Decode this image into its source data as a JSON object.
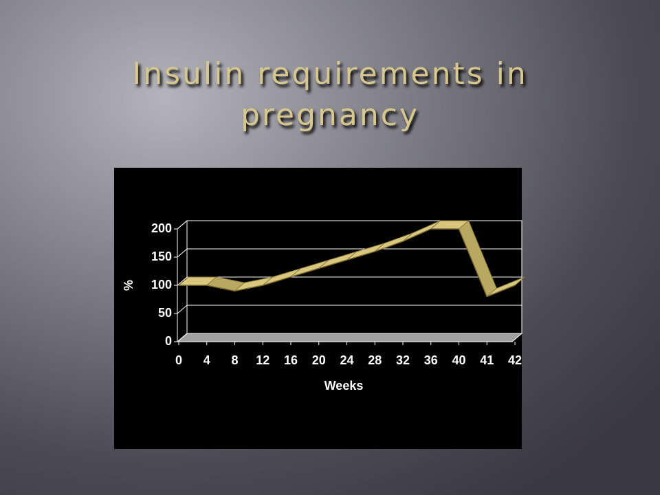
{
  "chart_data": {
    "type": "line",
    "three_d": true,
    "title": "Insulin requirements in pregnancy",
    "x_label": "Weeks",
    "y_label": "%",
    "categories": [
      "0",
      "4",
      "8",
      "12",
      "16",
      "20",
      "24",
      "28",
      "32",
      "36",
      "40",
      "41",
      "42"
    ],
    "values": [
      100,
      100,
      90,
      100,
      115,
      130,
      145,
      160,
      178,
      200,
      200,
      80,
      100
    ],
    "color": "#d8c77c",
    "ylim": [
      0,
      200
    ],
    "yticks": [
      0,
      50,
      100,
      150,
      200
    ],
    "grid": true
  }
}
